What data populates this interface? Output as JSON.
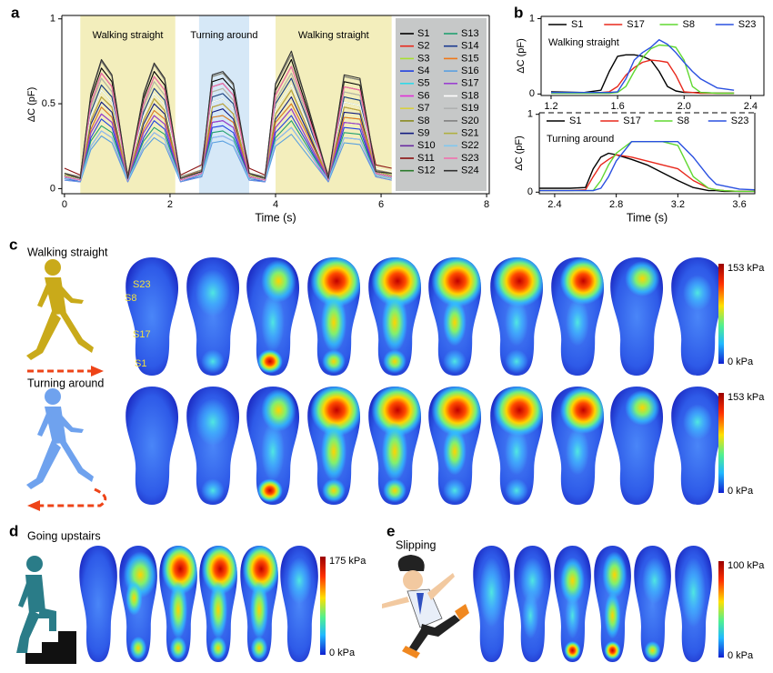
{
  "panel_labels": [
    "a",
    "b",
    "c",
    "d",
    "e"
  ],
  "chart_data": [
    {
      "type": "line",
      "xlabel": "Time (s)",
      "ylabel": "ΔC (pF)",
      "legend": "right",
      "xlim": [
        -0.05,
        8.05
      ],
      "ylim": [
        -0.03,
        1.02
      ],
      "xticks": [
        0,
        2,
        4,
        6,
        8
      ],
      "yticks": [
        0,
        0.5,
        1
      ],
      "regions": [
        {
          "label": "Walking straight",
          "start": 0.3,
          "end": 2.1,
          "color": "#f3eebc"
        },
        {
          "label": "Turning around",
          "start": 2.55,
          "end": 3.5,
          "color": "#d6e8f7"
        },
        {
          "label": "Walking straight",
          "start": 4.0,
          "end": 6.2,
          "color": "#f3eebc"
        }
      ],
      "x": [
        0,
        0.3,
        0.5,
        0.7,
        0.9,
        1.2,
        1.5,
        1.7,
        1.9,
        2.2,
        2.6,
        2.8,
        3.0,
        3.2,
        3.5,
        3.8,
        4.0,
        4.3,
        4.6,
        5.0,
        5.3,
        5.6,
        5.9,
        6.2
      ],
      "series": [
        {
          "name": "S1",
          "color": "#000000",
          "values": [
            0.08,
            0.06,
            0.53,
            0.71,
            0.63,
            0.06,
            0.53,
            0.69,
            0.61,
            0.06,
            0.1,
            0.63,
            0.65,
            0.58,
            0.08,
            0.06,
            0.58,
            0.76,
            0.47,
            0.06,
            0.63,
            0.61,
            0.1,
            0.08
          ]
        },
        {
          "name": "S2",
          "color": "#e8281c",
          "values": [
            0.07,
            0.05,
            0.4,
            0.54,
            0.48,
            0.05,
            0.4,
            0.53,
            0.46,
            0.05,
            0.09,
            0.48,
            0.5,
            0.44,
            0.07,
            0.05,
            0.44,
            0.58,
            0.36,
            0.05,
            0.48,
            0.46,
            0.09,
            0.07
          ]
        },
        {
          "name": "S3",
          "color": "#a8e030",
          "values": [
            0.09,
            0.07,
            0.45,
            0.61,
            0.54,
            0.07,
            0.45,
            0.59,
            0.52,
            0.07,
            0.11,
            0.54,
            0.56,
            0.5,
            0.09,
            0.07,
            0.5,
            0.65,
            0.41,
            0.07,
            0.54,
            0.52,
            0.11,
            0.09
          ]
        },
        {
          "name": "S4",
          "color": "#2040e0",
          "values": [
            0.06,
            0.04,
            0.3,
            0.41,
            0.36,
            0.04,
            0.3,
            0.4,
            0.35,
            0.04,
            0.08,
            0.36,
            0.37,
            0.33,
            0.06,
            0.04,
            0.33,
            0.43,
            0.27,
            0.04,
            0.36,
            0.35,
            0.08,
            0.06
          ]
        },
        {
          "name": "S5",
          "color": "#30d8e8",
          "values": [
            0.08,
            0.06,
            0.35,
            0.48,
            0.42,
            0.06,
            0.35,
            0.46,
            0.41,
            0.06,
            0.1,
            0.42,
            0.43,
            0.39,
            0.08,
            0.06,
            0.39,
            0.5,
            0.32,
            0.06,
            0.42,
            0.41,
            0.1,
            0.08
          ]
        },
        {
          "name": "S6",
          "color": "#e030d8",
          "values": [
            0.05,
            0.04,
            0.25,
            0.34,
            0.3,
            0.04,
            0.25,
            0.33,
            0.29,
            0.04,
            0.07,
            0.3,
            0.31,
            0.28,
            0.05,
            0.04,
            0.28,
            0.36,
            0.23,
            0.04,
            0.3,
            0.29,
            0.07,
            0.05
          ]
        },
        {
          "name": "S7",
          "color": "#d8d040",
          "values": [
            0.1,
            0.07,
            0.48,
            0.65,
            0.57,
            0.07,
            0.48,
            0.63,
            0.55,
            0.07,
            0.12,
            0.57,
            0.59,
            0.52,
            0.1,
            0.07,
            0.52,
            0.68,
            0.43,
            0.07,
            0.57,
            0.55,
            0.12,
            0.1
          ]
        },
        {
          "name": "S8",
          "color": "#8a8a20",
          "values": [
            0.08,
            0.06,
            0.55,
            0.75,
            0.66,
            0.06,
            0.55,
            0.73,
            0.64,
            0.06,
            0.1,
            0.66,
            0.68,
            0.61,
            0.08,
            0.06,
            0.61,
            0.79,
            0.5,
            0.06,
            0.66,
            0.64,
            0.1,
            0.08
          ]
        },
        {
          "name": "S9",
          "color": "#101a80",
          "values": [
            0.07,
            0.05,
            0.38,
            0.51,
            0.45,
            0.05,
            0.38,
            0.5,
            0.44,
            0.05,
            0.09,
            0.45,
            0.47,
            0.41,
            0.07,
            0.05,
            0.41,
            0.54,
            0.34,
            0.05,
            0.45,
            0.44,
            0.09,
            0.07
          ]
        },
        {
          "name": "S10",
          "color": "#6a2aa0",
          "values": [
            0.06,
            0.05,
            0.33,
            0.44,
            0.39,
            0.05,
            0.33,
            0.43,
            0.38,
            0.05,
            0.08,
            0.39,
            0.4,
            0.36,
            0.06,
            0.05,
            0.36,
            0.47,
            0.29,
            0.05,
            0.39,
            0.38,
            0.08,
            0.06
          ]
        },
        {
          "name": "S11",
          "color": "#8a1010",
          "values": [
            0.12,
            0.08,
            0.5,
            0.68,
            0.6,
            0.08,
            0.5,
            0.66,
            0.58,
            0.08,
            0.14,
            0.6,
            0.62,
            0.55,
            0.12,
            0.08,
            0.55,
            0.72,
            0.45,
            0.08,
            0.6,
            0.58,
            0.14,
            0.12
          ]
        },
        {
          "name": "S12",
          "color": "#2a7a2a",
          "values": [
            0.08,
            0.06,
            0.43,
            0.58,
            0.51,
            0.06,
            0.43,
            0.56,
            0.49,
            0.06,
            0.1,
            0.51,
            0.53,
            0.47,
            0.08,
            0.06,
            0.47,
            0.61,
            0.38,
            0.06,
            0.51,
            0.49,
            0.1,
            0.08
          ]
        },
        {
          "name": "S13",
          "color": "#20a070",
          "values": [
            0.06,
            0.05,
            0.28,
            0.37,
            0.33,
            0.05,
            0.28,
            0.36,
            0.32,
            0.05,
            0.08,
            0.33,
            0.34,
            0.3,
            0.06,
            0.05,
            0.3,
            0.4,
            0.25,
            0.05,
            0.33,
            0.32,
            0.08,
            0.06
          ]
        },
        {
          "name": "S14",
          "color": "#1a3a90",
          "values": [
            0.07,
            0.05,
            0.45,
            0.61,
            0.54,
            0.05,
            0.45,
            0.59,
            0.52,
            0.05,
            0.09,
            0.54,
            0.56,
            0.5,
            0.07,
            0.05,
            0.5,
            0.65,
            0.41,
            0.05,
            0.54,
            0.52,
            0.09,
            0.07
          ]
        },
        {
          "name": "S15",
          "color": "#f07818",
          "values": [
            0.09,
            0.06,
            0.35,
            0.48,
            0.42,
            0.06,
            0.35,
            0.46,
            0.41,
            0.06,
            0.11,
            0.42,
            0.43,
            0.39,
            0.09,
            0.06,
            0.39,
            0.5,
            0.32,
            0.06,
            0.42,
            0.41,
            0.11,
            0.09
          ]
        },
        {
          "name": "S16",
          "color": "#5aa0e0",
          "values": [
            0.05,
            0.04,
            0.23,
            0.31,
            0.27,
            0.04,
            0.23,
            0.3,
            0.26,
            0.04,
            0.07,
            0.27,
            0.28,
            0.25,
            0.05,
            0.04,
            0.25,
            0.32,
            0.2,
            0.04,
            0.27,
            0.26,
            0.07,
            0.05
          ]
        },
        {
          "name": "S17",
          "color": "#9a40d0",
          "values": [
            0.08,
            0.06,
            0.33,
            0.44,
            0.39,
            0.06,
            0.33,
            0.43,
            0.38,
            0.06,
            0.1,
            0.39,
            0.4,
            0.36,
            0.08,
            0.06,
            0.36,
            0.47,
            0.29,
            0.06,
            0.39,
            0.38,
            0.1,
            0.08
          ]
        },
        {
          "name": "S18",
          "color": "#ffffff",
          "values": [
            0.1,
            0.07,
            0.43,
            0.58,
            0.51,
            0.07,
            0.43,
            0.56,
            0.49,
            0.07,
            0.12,
            0.51,
            0.53,
            0.47,
            0.1,
            0.07,
            0.47,
            0.61,
            0.38,
            0.07,
            0.51,
            0.49,
            0.12,
            0.1
          ]
        },
        {
          "name": "S19",
          "color": "#b0b0b0",
          "values": [
            0.08,
            0.06,
            0.48,
            0.65,
            0.57,
            0.06,
            0.48,
            0.63,
            0.55,
            0.06,
            0.1,
            0.57,
            0.59,
            0.52,
            0.08,
            0.06,
            0.52,
            0.68,
            0.43,
            0.06,
            0.57,
            0.55,
            0.1,
            0.08
          ]
        },
        {
          "name": "S20",
          "color": "#808080",
          "values": [
            0.09,
            0.07,
            0.55,
            0.75,
            0.66,
            0.07,
            0.55,
            0.73,
            0.64,
            0.07,
            0.11,
            0.66,
            0.68,
            0.61,
            0.09,
            0.07,
            0.61,
            0.79,
            0.5,
            0.07,
            0.66,
            0.64,
            0.11,
            0.09
          ]
        },
        {
          "name": "S21",
          "color": "#b0b040",
          "values": [
            0.08,
            0.06,
            0.4,
            0.54,
            0.48,
            0.06,
            0.4,
            0.53,
            0.46,
            0.06,
            0.1,
            0.48,
            0.5,
            0.44,
            0.08,
            0.06,
            0.44,
            0.58,
            0.36,
            0.06,
            0.48,
            0.46,
            0.1,
            0.08
          ]
        },
        {
          "name": "S22",
          "color": "#80c8f0",
          "values": [
            0.06,
            0.05,
            0.25,
            0.34,
            0.3,
            0.05,
            0.25,
            0.33,
            0.29,
            0.05,
            0.08,
            0.3,
            0.31,
            0.28,
            0.06,
            0.05,
            0.28,
            0.36,
            0.23,
            0.05,
            0.3,
            0.29,
            0.08,
            0.06
          ]
        },
        {
          "name": "S23",
          "color": "#f070b0",
          "values": [
            0.07,
            0.05,
            0.5,
            0.68,
            0.6,
            0.05,
            0.5,
            0.66,
            0.58,
            0.05,
            0.09,
            0.6,
            0.62,
            0.55,
            0.07,
            0.05,
            0.55,
            0.72,
            0.45,
            0.05,
            0.6,
            0.58,
            0.09,
            0.07
          ]
        },
        {
          "name": "S24",
          "color": "#303030",
          "values": [
            0.09,
            0.06,
            0.56,
            0.76,
            0.67,
            0.06,
            0.56,
            0.74,
            0.65,
            0.06,
            0.1,
            0.67,
            0.69,
            0.62,
            0.09,
            0.06,
            0.62,
            0.81,
            0.5,
            0.06,
            0.67,
            0.65,
            0.1,
            0.09
          ]
        }
      ]
    },
    {
      "type": "line",
      "ylabel": "ΔC (pF)",
      "legend": "top",
      "annotation": "Walking straight",
      "xlim": [
        1.14,
        2.48
      ],
      "ylim": [
        -0.02,
        1.03
      ],
      "xticks": [
        1.2,
        1.6,
        {
          "value": 2,
          "label": "2.0"
        },
        2.4
      ],
      "yticks": [
        0,
        1
      ],
      "x": [
        1.2,
        1.4,
        1.5,
        1.55,
        1.6,
        1.65,
        1.7,
        1.75,
        1.8,
        1.85,
        1.9,
        1.95,
        2.0,
        2.05,
        2.1,
        2.2,
        2.3
      ],
      "series": [
        {
          "name": "S1",
          "color": "#000000",
          "values": [
            0.03,
            0.02,
            0.05,
            0.3,
            0.5,
            0.52,
            0.52,
            0.5,
            0.45,
            0.3,
            0.1,
            0.04,
            0.02,
            0.02,
            0.02,
            0.01,
            0.01
          ]
        },
        {
          "name": "S17",
          "color": "#e8281c",
          "values": [
            0.02,
            0.02,
            0.02,
            0.03,
            0.1,
            0.25,
            0.35,
            0.42,
            0.45,
            0.44,
            0.42,
            0.25,
            0.03,
            0.02,
            0.01,
            0.01,
            0.01
          ]
        },
        {
          "name": "S8",
          "color": "#60d830",
          "values": [
            0.01,
            0.01,
            0.01,
            0.01,
            0.02,
            0.1,
            0.3,
            0.48,
            0.6,
            0.65,
            0.64,
            0.62,
            0.45,
            0.1,
            0.02,
            0.01,
            0.01
          ]
        },
        {
          "name": "S23",
          "color": "#2a50e0",
          "values": [
            0.02,
            0.02,
            0.02,
            0.02,
            0.03,
            0.2,
            0.45,
            0.55,
            0.62,
            0.72,
            0.66,
            0.55,
            0.42,
            0.3,
            0.2,
            0.08,
            0.05
          ]
        }
      ]
    },
    {
      "type": "line",
      "xlabel": "Time (s)",
      "ylabel": "ΔC (pF)",
      "legend": "top",
      "annotation": "Turning around",
      "xlim": [
        2.3,
        3.7
      ],
      "ylim": [
        -0.02,
        1.02
      ],
      "xticks": [
        2.4,
        2.8,
        3.2,
        3.6
      ],
      "yticks": [
        0,
        1
      ],
      "x": [
        2.3,
        2.5,
        2.6,
        2.65,
        2.7,
        2.75,
        2.8,
        2.9,
        3.0,
        3.1,
        3.2,
        3.3,
        3.4,
        3.45,
        3.5,
        3.6,
        3.7
      ],
      "series": [
        {
          "name": "S1",
          "color": "#000000",
          "values": [
            0.05,
            0.05,
            0.06,
            0.3,
            0.45,
            0.5,
            0.48,
            0.42,
            0.35,
            0.25,
            0.15,
            0.06,
            0.02,
            0.02,
            0.01,
            0.01,
            0.01
          ]
        },
        {
          "name": "S17",
          "color": "#e8281c",
          "values": [
            0.02,
            0.02,
            0.03,
            0.2,
            0.35,
            0.42,
            0.48,
            0.45,
            0.4,
            0.35,
            0.3,
            0.15,
            0.05,
            0.03,
            0.02,
            0.01,
            0.01
          ]
        },
        {
          "name": "S8",
          "color": "#60d830",
          "values": [
            0.02,
            0.02,
            0.02,
            0.02,
            0.15,
            0.35,
            0.5,
            0.65,
            0.65,
            0.65,
            0.6,
            0.2,
            0.05,
            0.03,
            0.02,
            0.01,
            0.01
          ]
        },
        {
          "name": "S23",
          "color": "#2a50e0",
          "values": [
            0.02,
            0.02,
            0.02,
            0.02,
            0.05,
            0.2,
            0.4,
            0.65,
            0.65,
            0.65,
            0.65,
            0.45,
            0.2,
            0.1,
            0.08,
            0.04,
            0.03
          ]
        }
      ]
    }
  ],
  "heatmap_c": {
    "rows": [
      {
        "label": "Walking straight",
        "colorbar_max": "153 kPa",
        "colorbar_min": "0 kPa"
      },
      {
        "label": "Turning around",
        "colorbar_max": "153 kPa",
        "colorbar_min": "0 kPa"
      }
    ],
    "sensor_labels": [
      "S23",
      "S8",
      "S17",
      "S1"
    ]
  },
  "heatmap_d": {
    "label": "Going upstairs",
    "colorbar_max": "175 kPa",
    "colorbar_min": "0 kPa"
  },
  "heatmap_e": {
    "label": "Slipping",
    "colorbar_max": "100 kPa",
    "colorbar_min": "0 kPa"
  }
}
